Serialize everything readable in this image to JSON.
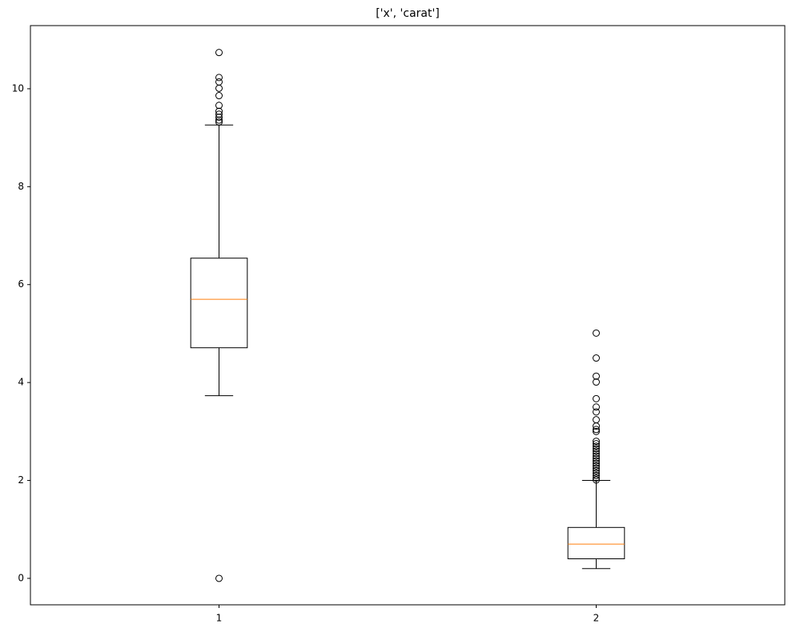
{
  "chart_data": {
    "type": "box",
    "title": "['x', 'carat']",
    "categories": [
      "1",
      "2"
    ],
    "boxes": [
      {
        "whislo": 3.73,
        "q1": 4.71,
        "med": 5.7,
        "q3": 6.54,
        "whishi": 9.26,
        "fliers": [
          10.74,
          10.23,
          10.14,
          10.01,
          9.86,
          9.66,
          9.54,
          9.48,
          9.42,
          9.36,
          9.32,
          0
        ]
      },
      {
        "whislo": 0.2,
        "q1": 0.4,
        "med": 0.7,
        "q3": 1.04,
        "whishi": 2.0,
        "fliers": [
          5.01,
          4.5,
          4.13,
          4.01,
          3.67,
          3.5,
          3.4,
          3.24,
          3.11,
          3.04,
          3.0,
          2.8,
          2.75,
          2.7,
          2.65,
          2.6,
          2.55,
          2.5,
          2.45,
          2.4,
          2.35,
          2.3,
          2.25,
          2.2,
          2.15,
          2.1,
          2.05,
          2.01
        ]
      }
    ],
    "box_color": "#000000",
    "median_color": "#ff7f0e",
    "ylim": [
      -0.54,
      11.29
    ],
    "yticks": [
      0,
      2,
      4,
      6,
      8,
      10
    ],
    "grid": false
  }
}
